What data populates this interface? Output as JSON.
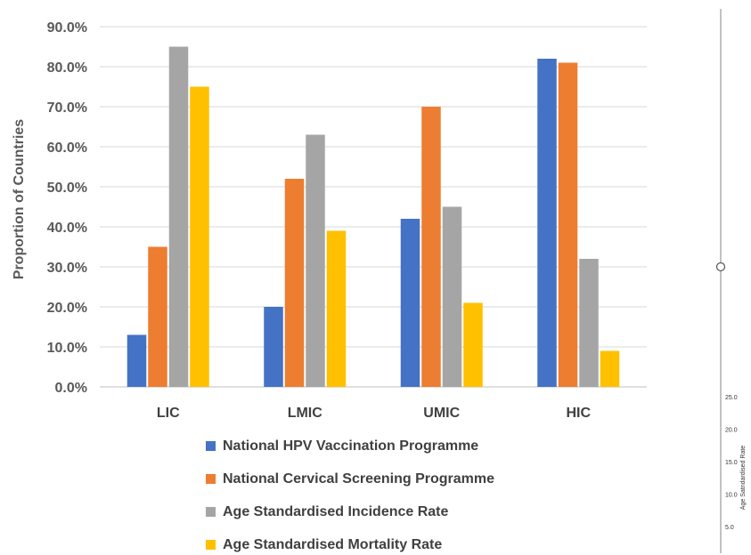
{
  "chart_data": {
    "type": "bar",
    "ylabel": "Proportion of Countries",
    "ylim": [
      0,
      90
    ],
    "yticks": [
      "0.0%",
      "10.0%",
      "20.0%",
      "30.0%",
      "40.0%",
      "50.0%",
      "60.0%",
      "70.0%",
      "80.0%",
      "90.0%"
    ],
    "categories": [
      "LIC",
      "LMIC",
      "UMIC",
      "HIC"
    ],
    "grid": true,
    "legend_position": "bottom",
    "series": [
      {
        "name": "National HPV Vaccination Programme",
        "color": "#4472C4",
        "values": [
          13,
          20,
          42,
          82
        ]
      },
      {
        "name": "National Cervical Screening Programme",
        "color": "#ED7D31",
        "values": [
          35,
          52,
          70,
          81
        ]
      },
      {
        "name": "Age Standardised Incidence Rate",
        "color": "#A5A5A5",
        "values": [
          85,
          63,
          45,
          32
        ]
      },
      {
        "name": "Age Standardised Mortality Rate",
        "color": "#FFC000",
        "values": [
          75,
          39,
          21,
          9
        ]
      }
    ]
  },
  "side_panel": {
    "ticks": [
      "25.0",
      "20.0",
      "15.0",
      "10.0",
      "5.0"
    ],
    "label": "Age Satndardised Rate"
  }
}
